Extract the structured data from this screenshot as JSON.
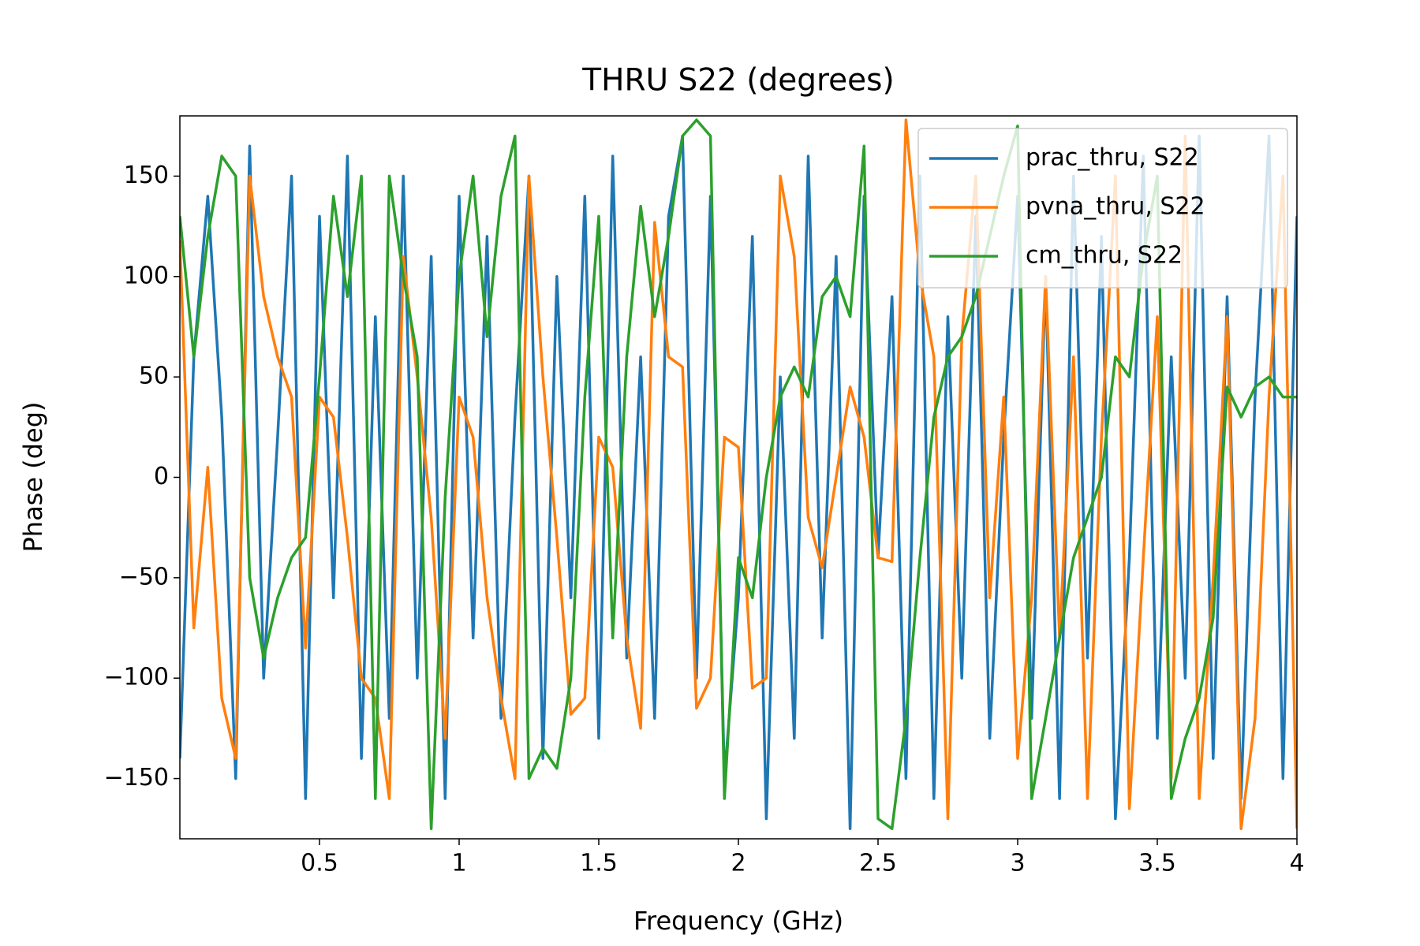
{
  "chart_data": {
    "type": "line",
    "title": "THRU S22 (degrees)",
    "x_label": "Frequency (GHz)",
    "y_label": "Phase (deg)",
    "x": [
      0,
      0.05,
      0.1,
      0.15,
      0.2,
      0.25,
      0.3,
      0.35,
      0.4,
      0.45,
      0.5,
      0.55,
      0.6,
      0.65,
      0.7,
      0.75,
      0.8,
      0.85,
      0.9,
      0.95,
      1,
      1.05,
      1.1,
      1.15,
      1.2,
      1.25,
      1.3,
      1.35,
      1.4,
      1.45,
      1.5,
      1.55,
      1.6,
      1.65,
      1.7,
      1.75,
      1.8,
      1.85,
      1.9,
      1.95,
      2,
      2.05,
      2.1,
      2.15,
      2.2,
      2.25,
      2.3,
      2.35,
      2.4,
      2.45,
      2.5,
      2.55,
      2.6,
      2.65,
      2.7,
      2.75,
      2.8,
      2.85,
      2.9,
      2.95,
      3,
      3.05,
      3.1,
      3.15,
      3.2,
      3.25,
      3.3,
      3.35,
      3.4,
      3.45,
      3.5,
      3.55,
      3.6,
      3.65,
      3.7,
      3.75,
      3.8,
      3.85,
      3.9,
      3.95,
      4
    ],
    "series": [
      {
        "name": "prac_thru, S22",
        "color": "#1f77b4",
        "values": [
          -140,
          60,
          140,
          30,
          -150,
          165,
          -100,
          20,
          150,
          -160,
          130,
          -60,
          160,
          -140,
          80,
          -120,
          150,
          -100,
          110,
          -160,
          140,
          -80,
          120,
          -120,
          30,
          150,
          -140,
          100,
          -60,
          140,
          -130,
          160,
          -90,
          60,
          -120,
          130,
          170,
          -100,
          140,
          -150,
          -60,
          120,
          -170,
          50,
          -130,
          160,
          -80,
          110,
          -175,
          140,
          -40,
          90,
          -150,
          150,
          -160,
          80,
          -100,
          130,
          -130,
          20,
          140,
          -120,
          100,
          -160,
          150,
          -90,
          120,
          -170,
          -40,
          160,
          -130,
          60,
          -100,
          170,
          -140,
          90,
          -160,
          40,
          170,
          -150,
          130
        ]
      },
      {
        "name": "pvna_thru, S22",
        "color": "#ff7f0e",
        "values": [
          118,
          -75,
          5,
          -110,
          -140,
          150,
          90,
          60,
          40,
          -85,
          40,
          30,
          -30,
          -100,
          -110,
          -160,
          110,
          50,
          -20,
          -130,
          40,
          20,
          -60,
          -110,
          -150,
          150,
          50,
          -30,
          -118,
          -110,
          20,
          5,
          -80,
          -125,
          127,
          60,
          55,
          -115,
          -100,
          20,
          15,
          -105,
          -100,
          150,
          110,
          -20,
          -45,
          0,
          45,
          20,
          -40,
          -42,
          178,
          100,
          60,
          -170,
          70,
          150,
          -60,
          40,
          -140,
          -60,
          100,
          -80,
          60,
          -160,
          20,
          150,
          -165,
          -40,
          80,
          -150,
          170,
          -160,
          -50,
          80,
          -175,
          -120,
          40,
          150,
          -175
        ]
      },
      {
        "name": "cm_thru, S22",
        "color": "#2ca02c",
        "values": [
          130,
          60,
          120,
          160,
          150,
          -50,
          -90,
          -60,
          -40,
          -30,
          50,
          140,
          90,
          150,
          -160,
          150,
          100,
          60,
          -175,
          -10,
          100,
          150,
          70,
          140,
          170,
          -150,
          -135,
          -145,
          -100,
          40,
          130,
          -80,
          60,
          135,
          80,
          120,
          170,
          178,
          170,
          -160,
          -40,
          -60,
          0,
          40,
          55,
          40,
          90,
          100,
          80,
          165,
          -170,
          -175,
          -120,
          -40,
          30,
          60,
          70,
          90,
          120,
          150,
          175,
          -160,
          -120,
          -80,
          -40,
          -20,
          0,
          60,
          50,
          110,
          150,
          -160,
          -130,
          -110,
          -70,
          45,
          30,
          45,
          50,
          40,
          40
        ]
      }
    ],
    "xlim": [
      0,
      4
    ],
    "ylim": [
      -180,
      180
    ],
    "xticks": [
      0.5,
      1,
      1.5,
      2,
      2.5,
      3,
      3.5,
      4
    ],
    "yticks": [
      {
        "value": -150,
        "label": "−150"
      },
      {
        "value": -100,
        "label": "−100"
      },
      {
        "value": -50,
        "label": "−50"
      },
      0,
      50,
      100,
      150
    ],
    "legend": "upper right"
  }
}
